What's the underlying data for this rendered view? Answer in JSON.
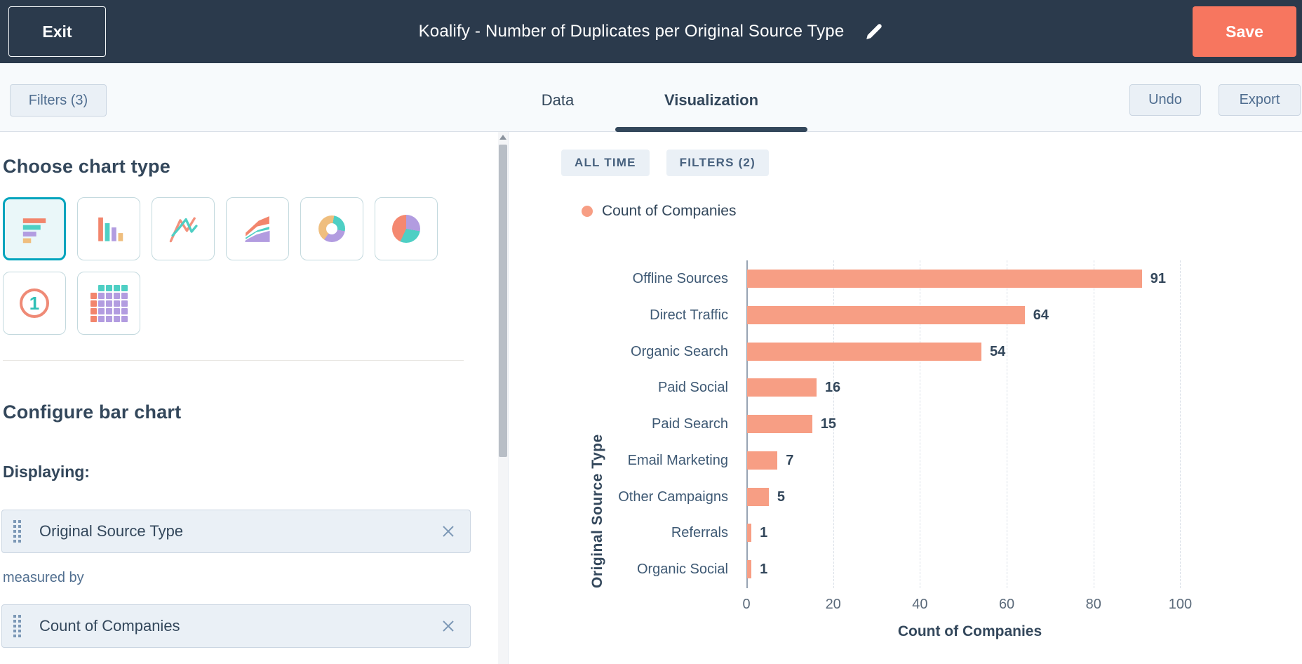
{
  "topbar": {
    "exit_label": "Exit",
    "title": "Koalify - Number of Duplicates per Original Source Type",
    "save_label": "Save"
  },
  "toolbar": {
    "filters_label": "Filters (3)",
    "tabs": [
      {
        "label": "Data",
        "active": false
      },
      {
        "label": "Visualization",
        "active": true
      }
    ],
    "undo_label": "Undo",
    "export_label": "Export"
  },
  "sidebar": {
    "chart_type_heading": "Choose chart type",
    "chart_types": [
      {
        "name": "horizontal-bar",
        "selected": true
      },
      {
        "name": "column",
        "selected": false
      },
      {
        "name": "line",
        "selected": false
      },
      {
        "name": "area",
        "selected": false
      },
      {
        "name": "donut",
        "selected": false
      },
      {
        "name": "pie",
        "selected": false
      },
      {
        "name": "kpi",
        "selected": false
      },
      {
        "name": "table",
        "selected": false
      }
    ],
    "kpi_icon_glyph": "1",
    "configure_heading": "Configure bar chart",
    "displaying_label": "Displaying:",
    "dimension_field": {
      "value": "Original Source Type"
    },
    "measured_by_label": "measured by",
    "measure_field": {
      "value": "Count of Companies"
    }
  },
  "report": {
    "time_range_badge": "ALL TIME",
    "filters_badge": "FILTERS (2)",
    "legend": [
      {
        "label": "Count of Companies",
        "color": "#f79e84"
      }
    ]
  },
  "chart_data": {
    "type": "bar",
    "orientation": "horizontal",
    "title": "",
    "categories": [
      "Offline Sources",
      "Direct Traffic",
      "Organic Search",
      "Paid Social",
      "Paid Search",
      "Email Marketing",
      "Other Campaigns",
      "Referrals",
      "Organic Social"
    ],
    "values": [
      91,
      64,
      54,
      16,
      15,
      7,
      5,
      1,
      1
    ],
    "xlabel": "Count of Companies",
    "ylabel": "Original Source Type",
    "xlim": [
      0,
      103
    ],
    "xticks": [
      0,
      20,
      40,
      60,
      80,
      100
    ],
    "grid": "dashed-vertical",
    "legend_position": "top-left",
    "series_color": "#f79e84"
  },
  "colors": {
    "topbar_bg": "#2b3a4c",
    "accent_orange": "#f7765f",
    "bar_color": "#f79e84",
    "selected_tile_border": "#00a4bd",
    "dark_text": "#33475b",
    "muted_text": "#516f90",
    "badge_bg": "#eaf0f6"
  }
}
